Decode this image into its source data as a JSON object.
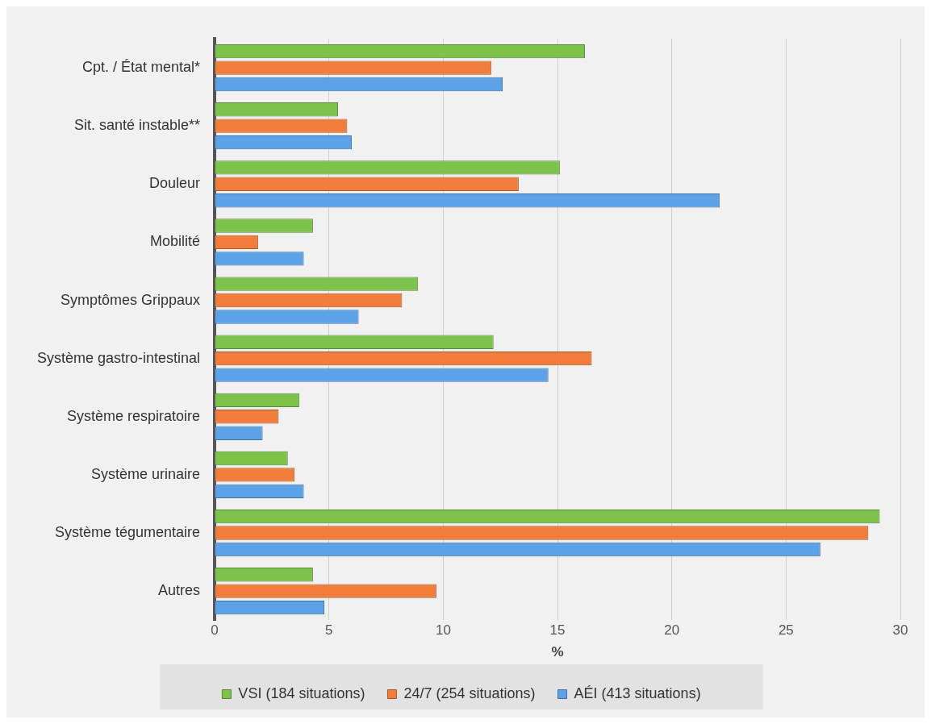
{
  "chart_data": {
    "type": "bar",
    "orientation": "horizontal",
    "xlabel": "%",
    "categories": [
      "Cpt. / État mental*",
      "Sit. santé instable**",
      "Douleur",
      "Mobilité",
      "Symptômes Grippaux",
      "Système gastro-intestinal",
      "Système respiratoire",
      "Système urinaire",
      "Système tégumentaire",
      "Autres"
    ],
    "series": [
      {
        "name": "VSI (184 situations)",
        "color": "#7dc24b",
        "values": [
          16.2,
          5.4,
          15.1,
          4.3,
          8.9,
          12.2,
          3.7,
          3.2,
          29.1,
          4.3
        ]
      },
      {
        "name": "24/7 (254 situations)",
        "color": "#f07d3a",
        "values": [
          12.1,
          5.8,
          13.3,
          1.9,
          8.2,
          16.5,
          2.8,
          3.5,
          28.6,
          9.7
        ]
      },
      {
        "name": "AÉI (413 situations)",
        "color": "#5ba3e6",
        "values": [
          12.6,
          6.0,
          22.1,
          3.9,
          6.3,
          14.6,
          2.1,
          3.9,
          26.5,
          4.8
        ]
      }
    ],
    "xlim": [
      0,
      30
    ],
    "xticks": [
      0,
      5,
      10,
      15,
      20,
      25,
      30
    ],
    "grid": "x",
    "legend": "bottom"
  }
}
